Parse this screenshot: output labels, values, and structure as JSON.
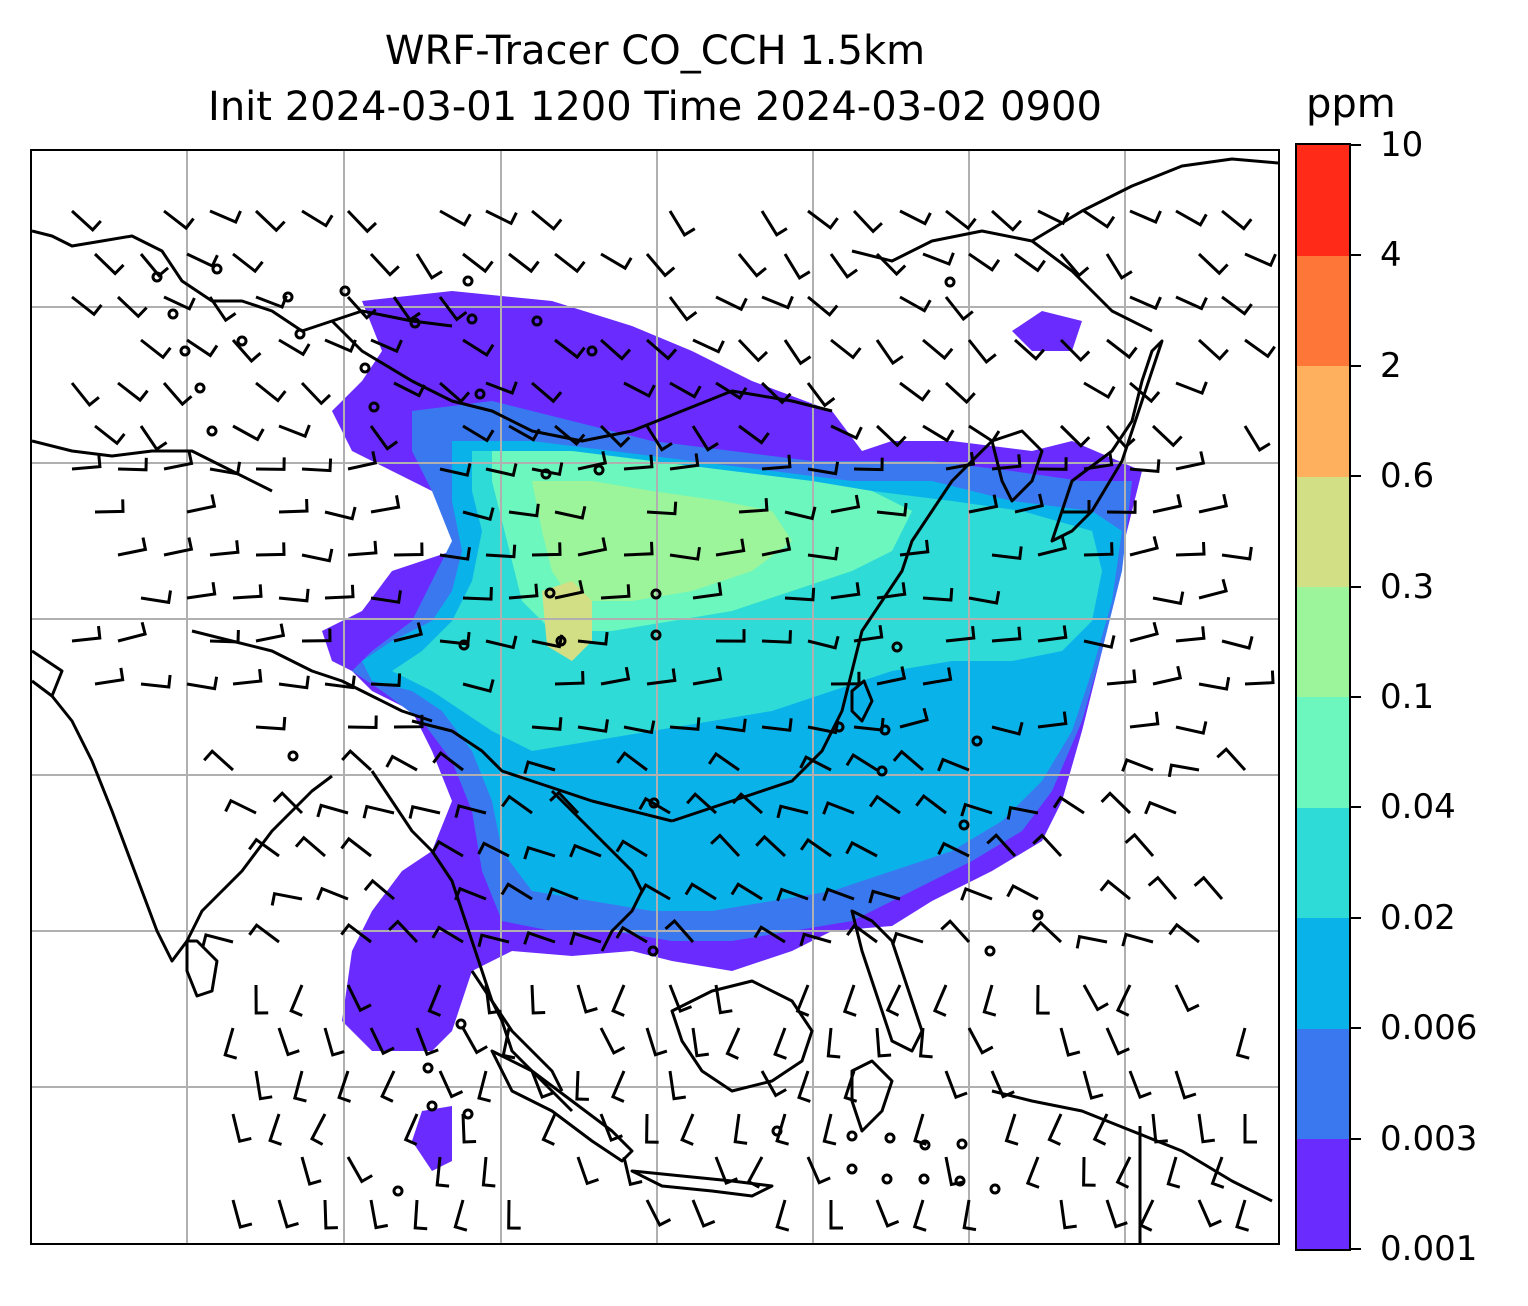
{
  "title_line1": "WRF-Tracer CO_CCH 1.5km",
  "title_line2": "Init 2024-03-01 1200 Time 2024-03-02 0900",
  "colorbar": {
    "unit": "ppm",
    "tick_labels": [
      "0.001",
      "0.003",
      "0.006",
      "0.02",
      "0.04",
      "0.1",
      "0.3",
      "0.6",
      "2",
      "4",
      "10"
    ],
    "colors": [
      "#6a2bff",
      "#3a78f0",
      "#0ab2ea",
      "#2edbd6",
      "#6cf7be",
      "#9cf59a",
      "#d2df84",
      "#ffb05e",
      "#ff7738",
      "#ff2a18"
    ]
  },
  "map": {
    "variable": "CO_CCH tracer concentration",
    "overlay": "wind barbs",
    "gridlines": true,
    "gridline_color": "#b0b0b0",
    "coastline_color": "#000000"
  }
}
